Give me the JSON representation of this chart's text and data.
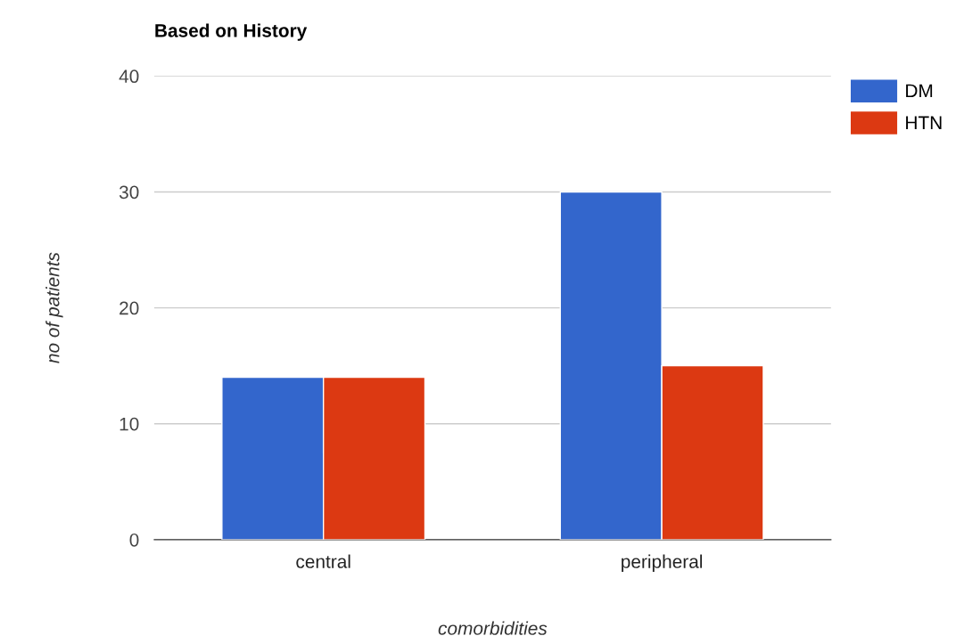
{
  "chart_data": {
    "type": "bar",
    "title": "Based on History",
    "xlabel": "comorbidities",
    "ylabel": "no of patients",
    "categories": [
      "central",
      "peripheral"
    ],
    "series": [
      {
        "name": "DM",
        "color": "#3366cc",
        "values": [
          14,
          30
        ]
      },
      {
        "name": "HTN",
        "color": "#dc3912",
        "values": [
          14,
          15
        ]
      }
    ],
    "ylim": [
      0,
      40
    ],
    "yticks": [
      0,
      10,
      20,
      30,
      40
    ],
    "grid": "y",
    "legend": "top right"
  }
}
